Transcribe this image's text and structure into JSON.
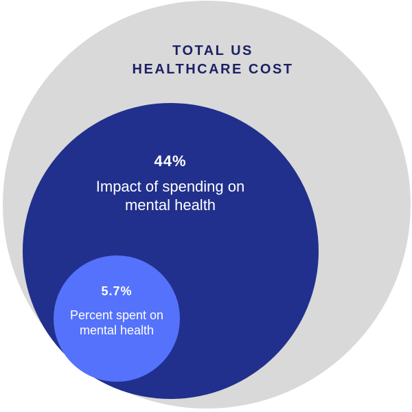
{
  "colors": {
    "outer": "#d9d9d9",
    "middle": "#21308c",
    "inner": "#5472fb",
    "title_text": "#1c2164",
    "on_dark_text": "#ffffff"
  },
  "outer": {
    "title_line1": "TOTAL US",
    "title_line2": "HEALTHCARE COST"
  },
  "middle": {
    "value": "44%",
    "desc_line1": "Impact of spending on",
    "desc_line2": "mental health"
  },
  "inner": {
    "value": "5.7%",
    "desc_line1": "Percent spent on",
    "desc_line2": "mental health"
  }
}
